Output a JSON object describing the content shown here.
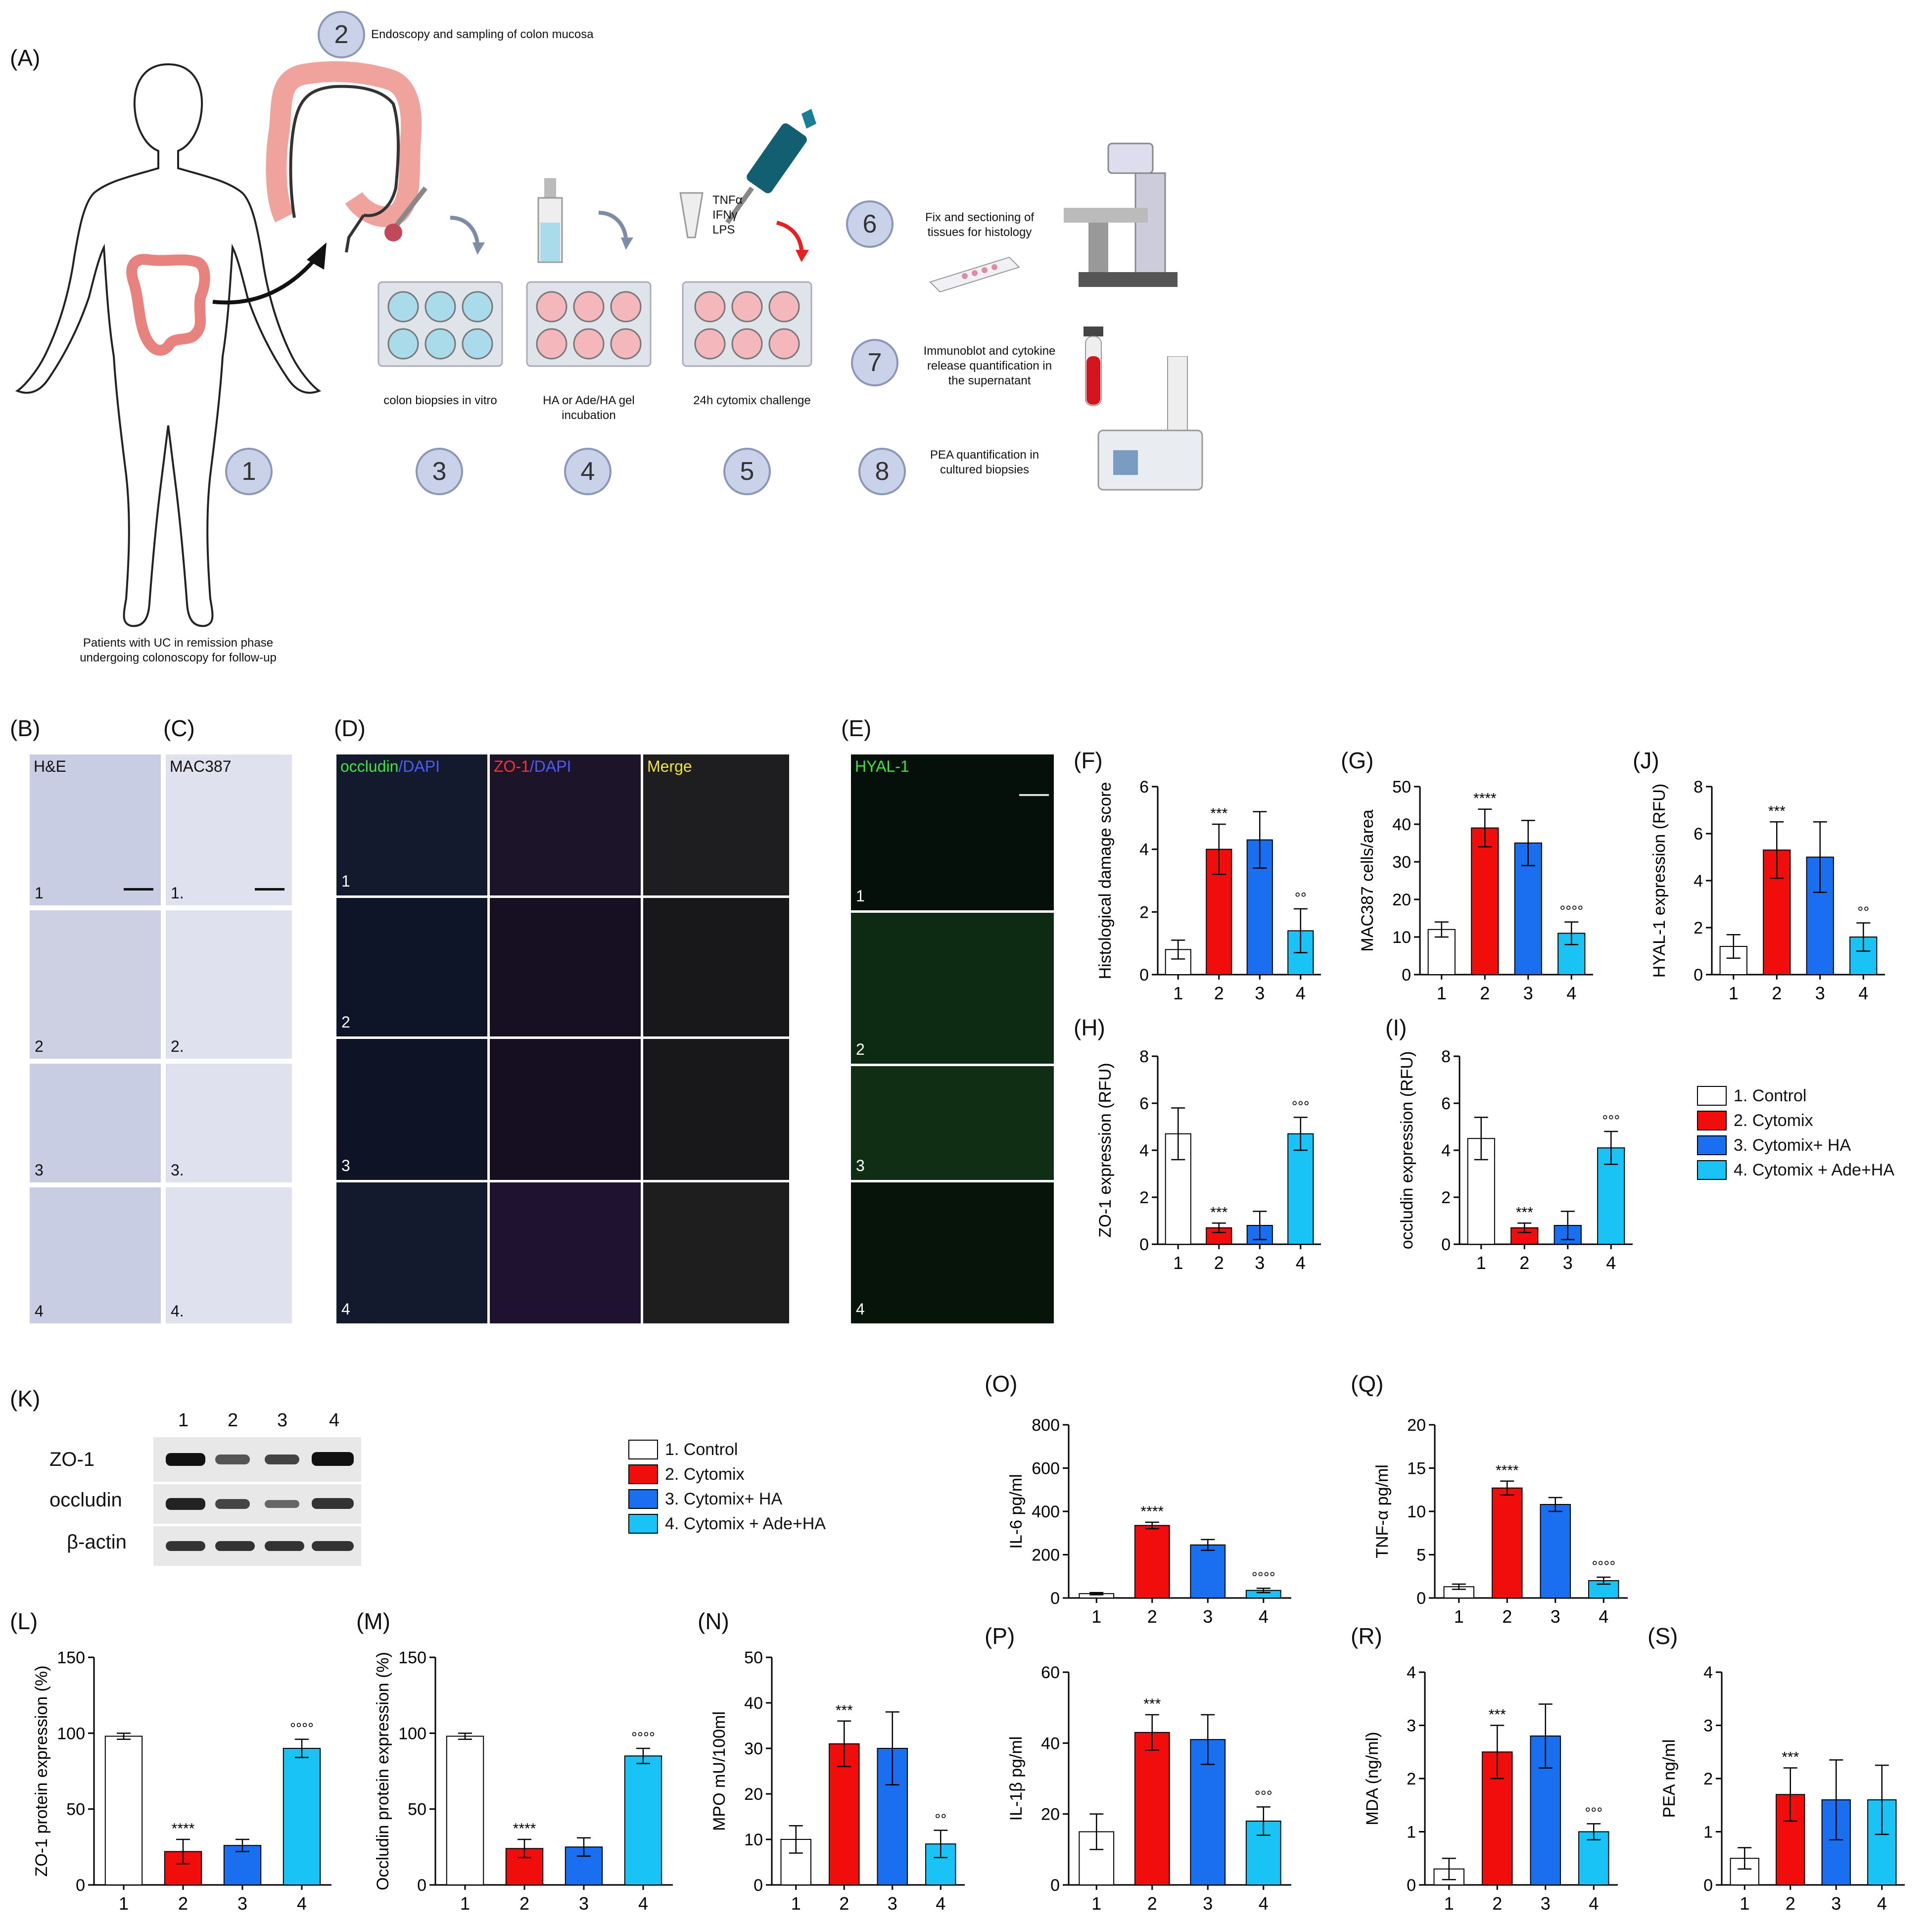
{
  "panel_labels": {
    "A": "(A)",
    "B": "(B)",
    "C": "(C)",
    "D": "(D)",
    "E": "(E)",
    "F": "(F)",
    "G": "(G)",
    "H": "(H)",
    "I": "(I)",
    "J": "(J)",
    "K": "(K)",
    "L": "(L)",
    "M": "(M)",
    "N": "(N)",
    "O": "(O)",
    "P": "(P)",
    "Q": "(Q)",
    "R": "(R)",
    "S": "(S)"
  },
  "schematic": {
    "step_numbers": [
      "1",
      "2",
      "3",
      "4",
      "5",
      "6",
      "7",
      "8"
    ],
    "step1": "Patients with UC in remission phase\nundergoing colonoscopy for follow-up",
    "step2": "Endoscopy and sampling of colon mucosa",
    "step3": "colon biopsies in vitro",
    "step4": "HA or Ade/HA gel\nincubation",
    "step5": "24h cytomix challenge",
    "cytokines": "TNFα\nIFNγ\nLPS",
    "step6": "Fix and sectioning of\ntissues for histology",
    "step7": "Immunoblot and cytokine\nrelease  quantification in\nthe supernatant",
    "step8": "PEA quantification in\ncultured biopsies"
  },
  "micrographs": {
    "he_label": "H&E",
    "mac_label": "MAC387",
    "b_rows": [
      "1",
      "2",
      "3",
      "4"
    ],
    "c_rows": [
      "1.",
      "2.",
      "3.",
      "4."
    ],
    "d_rows": [
      "1",
      "2",
      "3",
      "4"
    ],
    "e_rows": [
      "1",
      "2",
      "3",
      "4"
    ],
    "d_col1_a": "occludin",
    "d_col1_b": "/DAPI",
    "d_col2_a": "ZO-1",
    "d_col2_b": "/DAPI",
    "d_col3": "Merge",
    "e_label": "HYAL-1"
  },
  "colors": {
    "control": "#ffffff",
    "cytomix": "#f20d0d",
    "cytomix_ha": "#1a6ff0",
    "cytomix_ade_ha": "#19c3f5",
    "schematic_circle": "#c9d2e8"
  },
  "legend1": [
    "1. Control",
    "2. Cytomix",
    "3. Cytomix+ HA",
    "4. Cytomix + Ade+HA"
  ],
  "legend2": [
    "1. Control",
    "2. Cytomix",
    "3. Cytomix+ HA",
    "4. Cytomix + Ade+HA"
  ],
  "western": {
    "lanes": [
      "1",
      "2",
      "3",
      "4"
    ],
    "rows": [
      "ZO-1",
      "occludin",
      "β-actin"
    ],
    "intensity": {
      "ZO-1": [
        0.95,
        0.45,
        0.55,
        0.95
      ],
      "occludin": [
        0.85,
        0.6,
        0.4,
        0.7
      ],
      "β-actin": [
        0.7,
        0.7,
        0.7,
        0.7
      ]
    }
  },
  "chart_data": [
    {
      "id": "F",
      "type": "bar",
      "categories": [
        "1",
        "2",
        "3",
        "4"
      ],
      "values": [
        0.8,
        4.0,
        4.3,
        1.4
      ],
      "errors": [
        0.3,
        0.8,
        0.9,
        0.7
      ],
      "annotations": [
        "",
        "***",
        "",
        "°°"
      ],
      "ylabel": "Histological damage score",
      "ylim": [
        0,
        6
      ],
      "yticks": [
        "0",
        "2",
        "4",
        "6"
      ]
    },
    {
      "id": "G",
      "type": "bar",
      "categories": [
        "1",
        "2",
        "3",
        "4"
      ],
      "values": [
        12,
        39,
        35,
        11
      ],
      "errors": [
        2,
        5,
        6,
        3
      ],
      "annotations": [
        "",
        "****",
        "",
        "°°°°"
      ],
      "ylabel": "MAC387 cells/area",
      "ylim": [
        0,
        50
      ],
      "yticks": [
        "0",
        "10",
        "20",
        "30",
        "40",
        "50"
      ]
    },
    {
      "id": "J",
      "type": "bar",
      "categories": [
        "1",
        "2",
        "3",
        "4"
      ],
      "values": [
        1.2,
        5.3,
        5.0,
        1.6
      ],
      "errors": [
        0.5,
        1.2,
        1.5,
        0.6
      ],
      "annotations": [
        "",
        "***",
        "",
        "°°"
      ],
      "ylabel": "HYAL-1 expression (RFU)",
      "ylim": [
        0,
        8
      ],
      "yticks": [
        "0",
        "2",
        "4",
        "6",
        "8"
      ]
    },
    {
      "id": "H",
      "type": "bar",
      "categories": [
        "1",
        "2",
        "3",
        "4"
      ],
      "values": [
        4.7,
        0.7,
        0.8,
        4.7
      ],
      "errors": [
        1.1,
        0.2,
        0.6,
        0.7
      ],
      "annotations": [
        "",
        "***",
        "",
        "°°°"
      ],
      "ylabel": "ZO-1 expression (RFU)",
      "ylim": [
        0,
        8
      ],
      "yticks": [
        "0",
        "2",
        "4",
        "6",
        "8"
      ]
    },
    {
      "id": "I",
      "type": "bar",
      "categories": [
        "1",
        "2",
        "3",
        "4"
      ],
      "values": [
        4.5,
        0.7,
        0.8,
        4.1
      ],
      "errors": [
        0.9,
        0.2,
        0.6,
        0.7
      ],
      "annotations": [
        "",
        "***",
        "",
        "°°°"
      ],
      "ylabel": "occludin expression (RFU)",
      "ylim": [
        0,
        8
      ],
      "yticks": [
        "0",
        "2",
        "4",
        "6",
        "8"
      ]
    },
    {
      "id": "L",
      "type": "bar",
      "categories": [
        "1",
        "2",
        "3",
        "4"
      ],
      "values": [
        98,
        22,
        26,
        90
      ],
      "errors": [
        2,
        8,
        4,
        6
      ],
      "annotations": [
        "",
        "****",
        "",
        "°°°°"
      ],
      "ylabel": "ZO-1 protein expression (%)",
      "ylim": [
        0,
        150
      ],
      "yticks": [
        "0",
        "50",
        "100",
        "150"
      ]
    },
    {
      "id": "M",
      "type": "bar",
      "categories": [
        "1",
        "2",
        "3",
        "4"
      ],
      "values": [
        98,
        24,
        25,
        85
      ],
      "errors": [
        2,
        6,
        6,
        5
      ],
      "annotations": [
        "",
        "****",
        "",
        "°°°°"
      ],
      "ylabel": "Occludin protein expression (%)",
      "ylim": [
        0,
        150
      ],
      "yticks": [
        "0",
        "50",
        "100",
        "150"
      ]
    },
    {
      "id": "N",
      "type": "bar",
      "categories": [
        "1",
        "2",
        "3",
        "4"
      ],
      "values": [
        10,
        31,
        30,
        9
      ],
      "errors": [
        3,
        5,
        8,
        3
      ],
      "annotations": [
        "",
        "***",
        "",
        "°°"
      ],
      "ylabel": "MPO mU/100ml",
      "ylim": [
        0,
        50
      ],
      "yticks": [
        "0",
        "10",
        "20",
        "30",
        "40",
        "50"
      ]
    },
    {
      "id": "O",
      "type": "bar",
      "categories": [
        "1",
        "2",
        "3",
        "4"
      ],
      "values": [
        20,
        335,
        245,
        35
      ],
      "errors": [
        5,
        15,
        25,
        10
      ],
      "annotations": [
        "",
        "****",
        "",
        "°°°°"
      ],
      "ylabel": "IL-6 pg/ml",
      "ylim": [
        0,
        800
      ],
      "yticks": [
        "0",
        "200",
        "400",
        "600",
        "800"
      ]
    },
    {
      "id": "P",
      "type": "bar",
      "categories": [
        "1",
        "2",
        "3",
        "4"
      ],
      "values": [
        15,
        43,
        41,
        18
      ],
      "errors": [
        5,
        5,
        7,
        4
      ],
      "annotations": [
        "",
        "***",
        "",
        "°°°"
      ],
      "ylabel": "IL-1β pg/ml",
      "ylim": [
        0,
        60
      ],
      "yticks": [
        "0",
        "20",
        "40",
        "60"
      ]
    },
    {
      "id": "Q",
      "type": "bar",
      "categories": [
        "1",
        "2",
        "3",
        "4"
      ],
      "values": [
        1.3,
        12.7,
        10.8,
        2.0
      ],
      "errors": [
        0.3,
        0.8,
        0.8,
        0.4
      ],
      "annotations": [
        "",
        "****",
        "",
        "°°°°"
      ],
      "ylabel": "TNF-α pg/ml",
      "ylim": [
        0,
        20
      ],
      "yticks": [
        "0",
        "5",
        "10",
        "15",
        "20"
      ]
    },
    {
      "id": "R",
      "type": "bar",
      "categories": [
        "1",
        "2",
        "3",
        "4"
      ],
      "values": [
        0.3,
        2.5,
        2.8,
        1.0
      ],
      "errors": [
        0.2,
        0.5,
        0.6,
        0.15
      ],
      "annotations": [
        "",
        "***",
        "",
        "°°°"
      ],
      "ylabel": "MDA (ng/ml)",
      "ylim": [
        0,
        4
      ],
      "yticks": [
        "0",
        "1",
        "2",
        "3",
        "4"
      ]
    },
    {
      "id": "S",
      "type": "bar",
      "categories": [
        "1",
        "2",
        "3",
        "4"
      ],
      "values": [
        0.5,
        1.7,
        1.6,
        1.6
      ],
      "errors": [
        0.2,
        0.5,
        0.75,
        0.65
      ],
      "annotations": [
        "",
        "***",
        "",
        ""
      ],
      "ylabel": "PEA ng/ml",
      "ylim": [
        0,
        4
      ],
      "yticks": [
        "0",
        "1",
        "2",
        "3",
        "4"
      ]
    }
  ]
}
